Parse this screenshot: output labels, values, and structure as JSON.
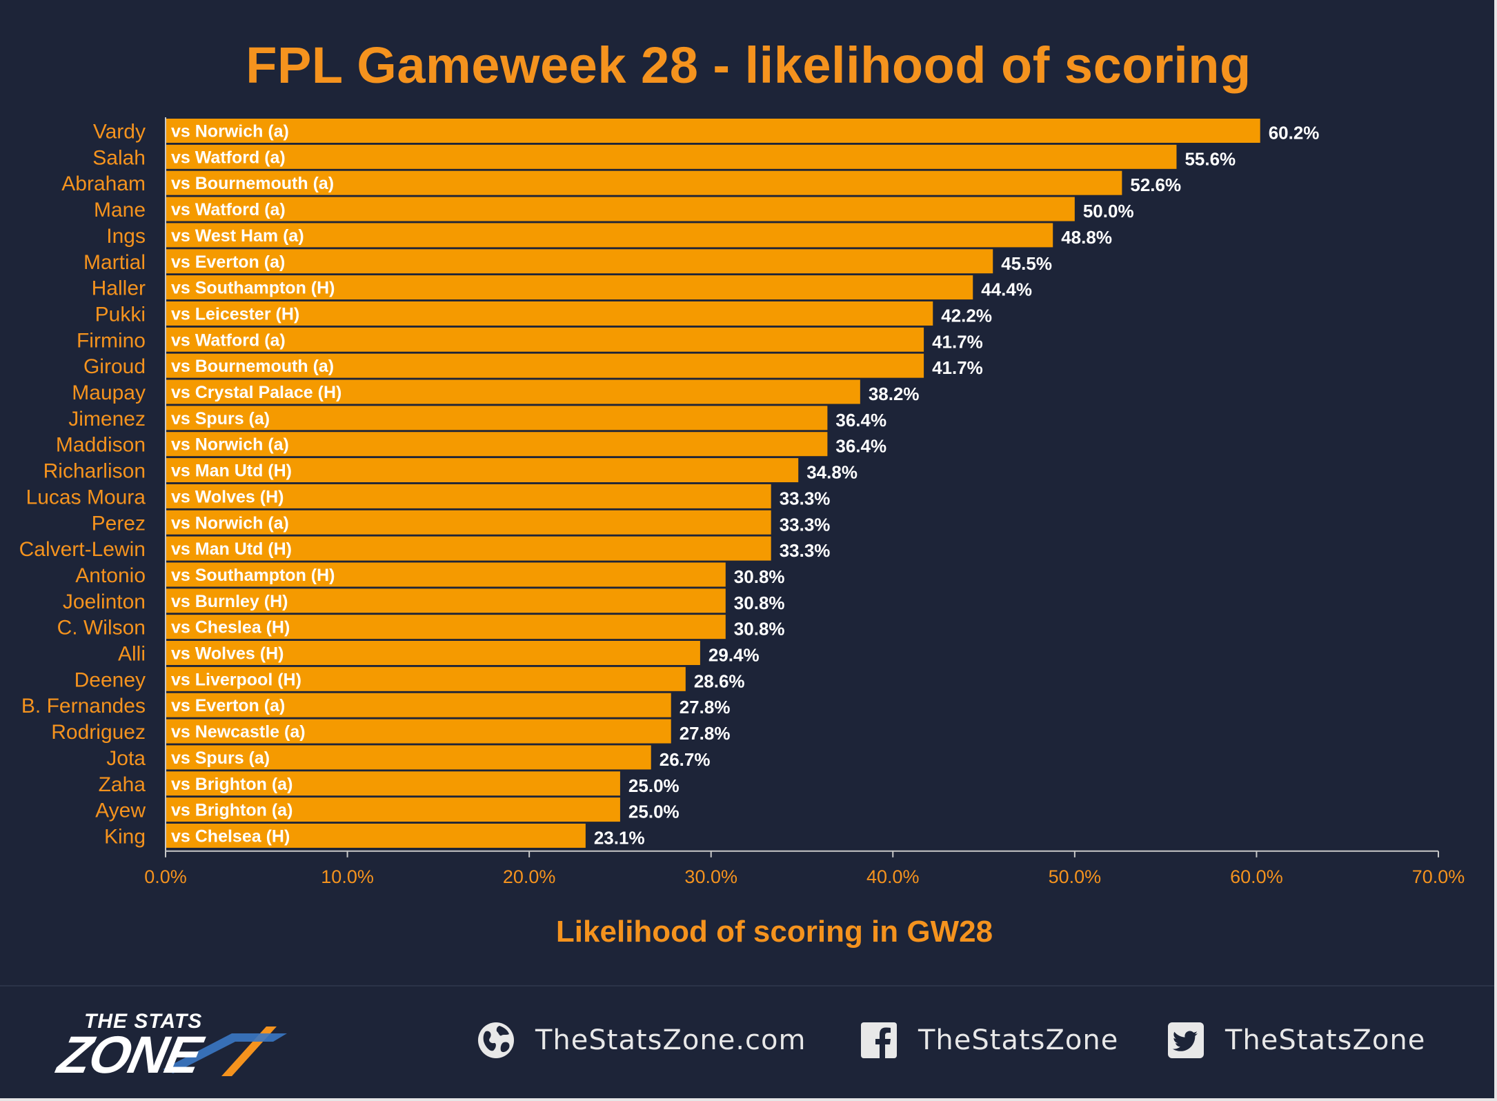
{
  "title": "FPL Gameweek 28 - likelihood of scoring",
  "footer": {
    "logo_top": "THE STATS",
    "logo_main": "ZONE",
    "website": "TheStatsZone.com",
    "facebook": "TheStatsZone",
    "twitter": "TheStatsZone"
  },
  "colors": {
    "background": "#1d2438",
    "bar": "#f59a00",
    "accent": "#f5931e",
    "text": "#ffffff"
  },
  "chart_data": {
    "type": "bar",
    "orientation": "horizontal",
    "title": "FPL Gameweek 28 - likelihood of scoring",
    "xlabel": "Likelihood of scoring in GW28",
    "ylabel": "",
    "xlim": [
      0,
      70
    ],
    "xticks": [
      "0.0%",
      "10.0%",
      "20.0%",
      "30.0%",
      "40.0%",
      "50.0%",
      "60.0%",
      "70.0%"
    ],
    "grid": false,
    "categories": [
      "Vardy",
      "Salah",
      "Abraham",
      "Mane",
      "Ings",
      "Martial",
      "Haller",
      "Pukki",
      "Firmino",
      "Giroud",
      "Maupay",
      "Jimenez",
      "Maddison",
      "Richarlison",
      "Lucas Moura",
      "Perez",
      "Calvert-Lewin",
      "Antonio",
      "Joelinton",
      "C. Wilson",
      "Alli",
      "Deeney",
      "B. Fernandes",
      "Rodriguez",
      "Jota",
      "Zaha",
      "Ayew",
      "King"
    ],
    "values": [
      60.2,
      55.6,
      52.6,
      50.0,
      48.8,
      45.5,
      44.4,
      42.2,
      41.7,
      41.7,
      38.2,
      36.4,
      36.4,
      34.8,
      33.3,
      33.3,
      33.3,
      30.8,
      30.8,
      30.8,
      29.4,
      28.6,
      27.8,
      27.8,
      26.7,
      25.0,
      25.0,
      23.1
    ],
    "value_labels": [
      "60.2%",
      "55.6%",
      "52.6%",
      "50.0%",
      "48.8%",
      "45.5%",
      "44.4%",
      "42.2%",
      "41.7%",
      "41.7%",
      "38.2%",
      "36.4%",
      "36.4%",
      "34.8%",
      "33.3%",
      "33.3%",
      "33.3%",
      "30.8%",
      "30.8%",
      "30.8%",
      "29.4%",
      "28.6%",
      "27.8%",
      "27.8%",
      "26.7%",
      "25.0%",
      "25.0%",
      "23.1%"
    ],
    "bar_labels": [
      "vs Norwich (a)",
      "vs Watford (a)",
      "vs Bournemouth (a)",
      "vs Watford (a)",
      "vs West Ham (a)",
      "vs Everton (a)",
      "vs Southampton (H)",
      "vs Leicester (H)",
      "vs Watford (a)",
      "vs Bournemouth (a)",
      "vs Crystal Palace (H)",
      "vs Spurs (a)",
      "vs Norwich (a)",
      "vs Man Utd (H)",
      "vs Wolves (H)",
      "vs Norwich (a)",
      "vs Man Utd (H)",
      "vs Southampton (H)",
      "vs Burnley (H)",
      "vs Cheslea (H)",
      "vs Wolves (H)",
      "vs Liverpool (H)",
      "vs Everton (a)",
      "vs Newcastle (a)",
      "vs Spurs (a)",
      "vs Brighton (a)",
      "vs Brighton (a)",
      "vs Chelsea (H)"
    ]
  }
}
